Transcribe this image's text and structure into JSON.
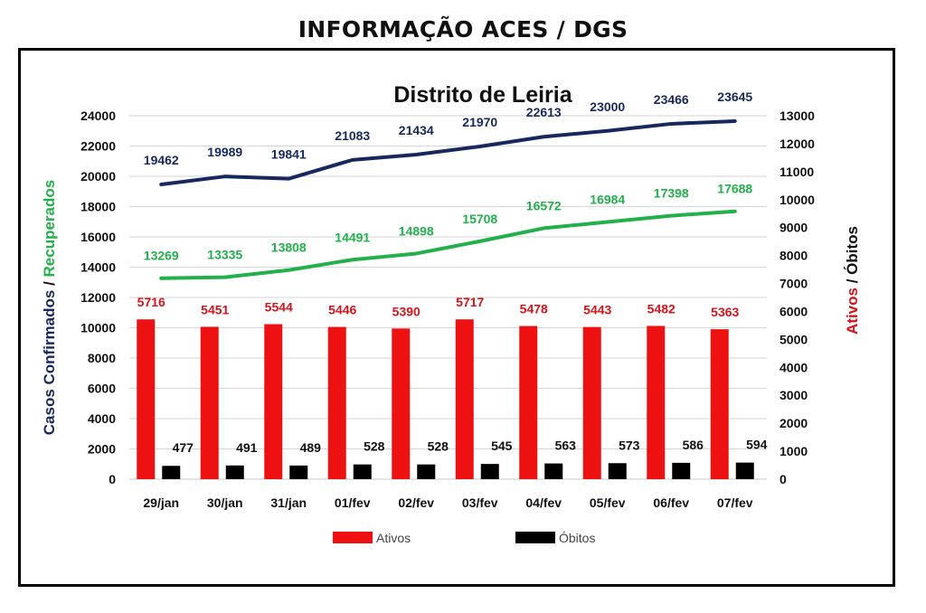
{
  "page_title": "INFORMAÇÃO ACES / DGS",
  "colors": {
    "confirmados": "#16285e",
    "recuperados": "#22b04b",
    "ativos": "#ee1111",
    "ativos_label": "#d4141a",
    "obitos": "#000000",
    "grid": "#d6d6d6"
  },
  "chart_data": {
    "type": "bar+line",
    "title": "Distrito de Leiria",
    "categories": [
      "29/jan",
      "30/jan",
      "31/jan",
      "01/fev",
      "02/fev",
      "03/fev",
      "04/fev",
      "05/fev",
      "06/fev",
      "07/fev"
    ],
    "left_axis": {
      "label_parts": [
        {
          "text": "Casos Confirmados",
          "color": "#16285e"
        },
        {
          "text": " / ",
          "color": "#111111"
        },
        {
          "text": "Recuperados",
          "color": "#22b04b"
        }
      ],
      "ylim": [
        0,
        24000
      ],
      "ticks": [
        0,
        2000,
        4000,
        6000,
        8000,
        10000,
        12000,
        14000,
        16000,
        18000,
        20000,
        22000,
        24000
      ]
    },
    "right_axis": {
      "label_parts": [
        {
          "text": "Ativos",
          "color": "#d4141a"
        },
        {
          "text": " / ",
          "color": "#111111"
        },
        {
          "text": "Óbitos",
          "color": "#111111"
        }
      ],
      "ylim": [
        0,
        13000
      ],
      "ticks": [
        0,
        1000,
        2000,
        3000,
        4000,
        5000,
        6000,
        7000,
        8000,
        9000,
        10000,
        11000,
        12000,
        13000
      ]
    },
    "series": [
      {
        "key": "confirmados",
        "type": "line",
        "axis": "left",
        "values": [
          19462,
          19989,
          19841,
          21083,
          21434,
          21970,
          22613,
          23000,
          23466,
          23645
        ]
      },
      {
        "key": "recuperados",
        "type": "line",
        "axis": "left",
        "values": [
          13269,
          13335,
          13808,
          14491,
          14898,
          15708,
          16572,
          16984,
          17398,
          17688
        ]
      },
      {
        "key": "ativos",
        "name": "Ativos",
        "type": "bar",
        "axis": "right",
        "values": [
          5716,
          5451,
          5544,
          5446,
          5390,
          5717,
          5478,
          5443,
          5482,
          5363
        ]
      },
      {
        "key": "obitos",
        "name": "Óbitos",
        "type": "bar",
        "axis": "right",
        "values": [
          477,
          491,
          489,
          528,
          528,
          545,
          563,
          573,
          586,
          594
        ]
      }
    ],
    "legend": {
      "position": "bottom",
      "items": [
        "Ativos",
        "Óbitos"
      ]
    },
    "grid": true
  }
}
